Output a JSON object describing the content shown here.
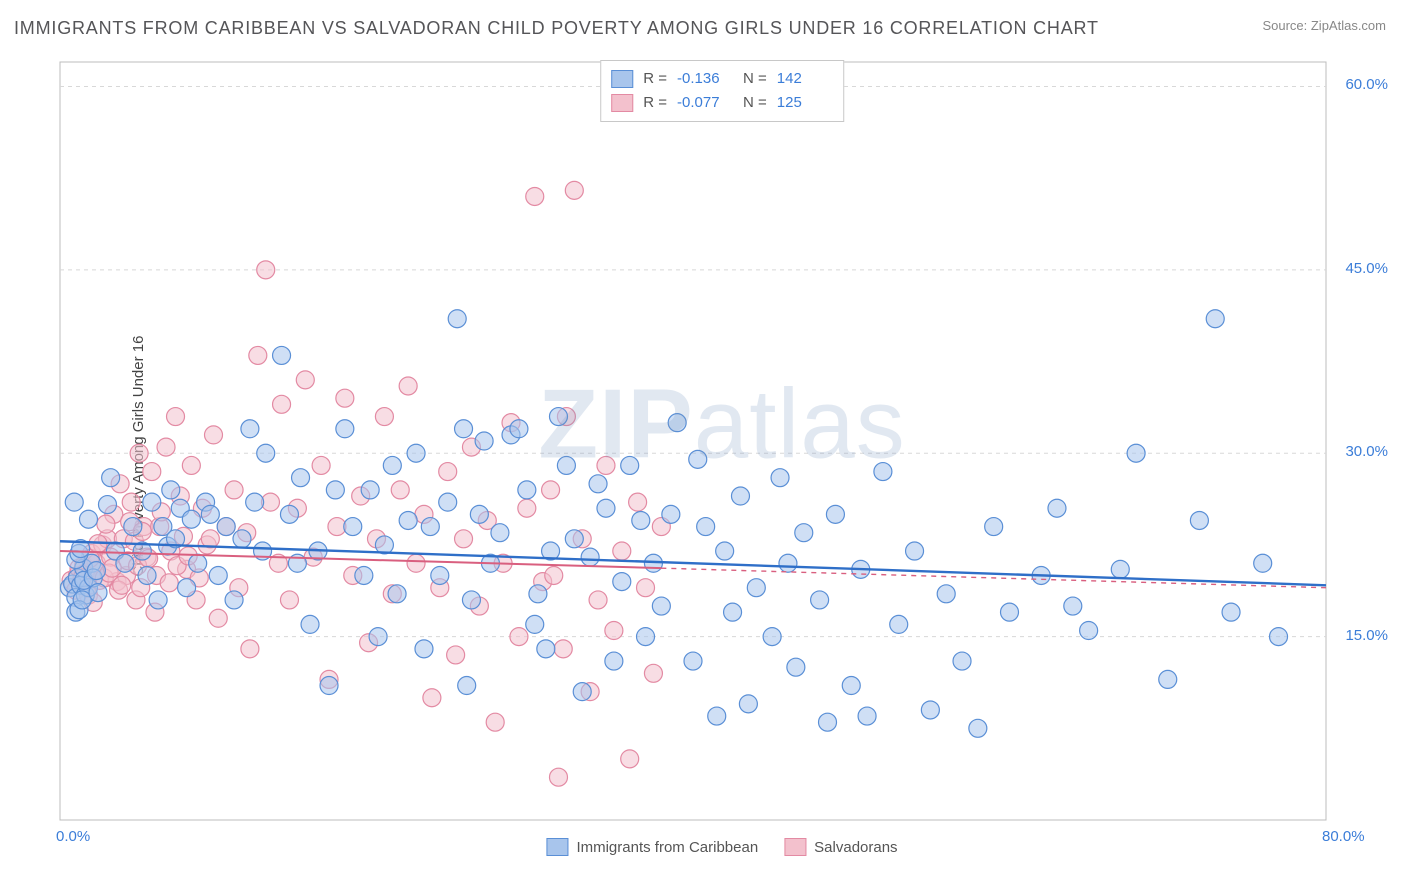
{
  "title": "IMMIGRANTS FROM CARIBBEAN VS SALVADORAN CHILD POVERTY AMONG GIRLS UNDER 16 CORRELATION CHART",
  "source_label": "Source: ",
  "source_name": "ZipAtlas.com",
  "ylabel": "Child Poverty Among Girls Under 16",
  "watermark_a": "ZIP",
  "watermark_b": "atlas",
  "chart": {
    "type": "scatter",
    "background_color": "#ffffff",
    "grid_color": "#d8d8d8",
    "axis_label_color": "#3b7dd8",
    "xlim": [
      0,
      80
    ],
    "ylim": [
      0,
      62
    ],
    "xticks": [
      {
        "v": 0,
        "label": "0.0%"
      },
      {
        "v": 80,
        "label": "80.0%"
      }
    ],
    "yticks": [
      {
        "v": 15,
        "label": "15.0%"
      },
      {
        "v": 30,
        "label": "30.0%"
      },
      {
        "v": 45,
        "label": "45.0%"
      },
      {
        "v": 60,
        "label": "60.0%"
      }
    ],
    "marker_radius": 9,
    "marker_opacity": 0.55,
    "series": [
      {
        "key": "caribbean",
        "name": "Immigrants from Caribbean",
        "fill": "#a8c5ec",
        "stroke": "#5a8fd6",
        "line_color": "#2f6fc8",
        "line_width": 2.4,
        "dash_extend": false,
        "R": "-0.136",
        "N": "142",
        "regression": {
          "x1": 0,
          "y1": 22.8,
          "x2": 80,
          "y2": 19.2
        },
        "points": [
          [
            0.6,
            19.0
          ],
          [
            0.8,
            19.3
          ],
          [
            1.0,
            18.2
          ],
          [
            1.1,
            19.8
          ],
          [
            1.3,
            19.2
          ],
          [
            1.5,
            20.6
          ],
          [
            1.6,
            18.4
          ],
          [
            1.8,
            19.0
          ],
          [
            1.0,
            17.0
          ],
          [
            1.2,
            17.2
          ],
          [
            1.4,
            18.0
          ],
          [
            1.5,
            19.6
          ],
          [
            2.0,
            21.0
          ],
          [
            2.1,
            19.8
          ],
          [
            2.3,
            20.4
          ],
          [
            2.4,
            18.6
          ],
          [
            0.9,
            26.0
          ],
          [
            1.0,
            21.3
          ],
          [
            1.2,
            21.8
          ],
          [
            1.3,
            22.2
          ],
          [
            1.8,
            24.6
          ],
          [
            3.0,
            25.8
          ],
          [
            3.5,
            22.0
          ],
          [
            3.2,
            28.0
          ],
          [
            4.1,
            21.0
          ],
          [
            4.6,
            24.0
          ],
          [
            5.2,
            22.0
          ],
          [
            5.5,
            20.0
          ],
          [
            5.8,
            26.0
          ],
          [
            6.2,
            18.0
          ],
          [
            6.5,
            24.0
          ],
          [
            6.8,
            22.4
          ],
          [
            7.0,
            27.0
          ],
          [
            7.3,
            23.0
          ],
          [
            7.6,
            25.5
          ],
          [
            8.0,
            19.0
          ],
          [
            8.3,
            24.6
          ],
          [
            8.7,
            21.0
          ],
          [
            9.2,
            26.0
          ],
          [
            9.5,
            25.0
          ],
          [
            10.0,
            20.0
          ],
          [
            10.5,
            24.0
          ],
          [
            11.0,
            18.0
          ],
          [
            11.5,
            23.0
          ],
          [
            12.0,
            32.0
          ],
          [
            12.3,
            26.0
          ],
          [
            12.8,
            22.0
          ],
          [
            13.0,
            30.0
          ],
          [
            14.0,
            38.0
          ],
          [
            14.5,
            25.0
          ],
          [
            15.0,
            21.0
          ],
          [
            15.2,
            28.0
          ],
          [
            15.8,
            16.0
          ],
          [
            16.3,
            22.0
          ],
          [
            17.0,
            11.0
          ],
          [
            17.4,
            27.0
          ],
          [
            18.0,
            32.0
          ],
          [
            18.5,
            24.0
          ],
          [
            19.2,
            20.0
          ],
          [
            19.6,
            27.0
          ],
          [
            20.1,
            15.0
          ],
          [
            20.5,
            22.5
          ],
          [
            21.0,
            29.0
          ],
          [
            21.3,
            18.5
          ],
          [
            22.0,
            24.5
          ],
          [
            22.5,
            30.0
          ],
          [
            23.0,
            14.0
          ],
          [
            23.4,
            24.0
          ],
          [
            24.0,
            20.0
          ],
          [
            24.5,
            26.0
          ],
          [
            25.1,
            41.0
          ],
          [
            25.5,
            32.0
          ],
          [
            25.7,
            11.0
          ],
          [
            26.0,
            18.0
          ],
          [
            26.5,
            25.0
          ],
          [
            26.8,
            31.0
          ],
          [
            27.2,
            21.0
          ],
          [
            27.8,
            23.5
          ],
          [
            28.5,
            31.5
          ],
          [
            29.0,
            32.0
          ],
          [
            29.5,
            27.0
          ],
          [
            30.0,
            16.0
          ],
          [
            30.2,
            18.5
          ],
          [
            30.7,
            14.0
          ],
          [
            31.0,
            22.0
          ],
          [
            31.5,
            33.0
          ],
          [
            32.0,
            29.0
          ],
          [
            32.5,
            23.0
          ],
          [
            33.0,
            10.5
          ],
          [
            33.5,
            21.5
          ],
          [
            34.0,
            27.5
          ],
          [
            34.5,
            25.5
          ],
          [
            35.0,
            13.0
          ],
          [
            35.5,
            19.5
          ],
          [
            36.0,
            29.0
          ],
          [
            36.7,
            24.5
          ],
          [
            37.0,
            15.0
          ],
          [
            37.5,
            21.0
          ],
          [
            38.0,
            17.5
          ],
          [
            38.6,
            25.0
          ],
          [
            39.0,
            32.5
          ],
          [
            40.0,
            13.0
          ],
          [
            40.3,
            29.5
          ],
          [
            40.8,
            24.0
          ],
          [
            41.5,
            8.5
          ],
          [
            42.0,
            22.0
          ],
          [
            42.5,
            17.0
          ],
          [
            43.0,
            26.5
          ],
          [
            43.5,
            9.5
          ],
          [
            44.0,
            19.0
          ],
          [
            45.0,
            15.0
          ],
          [
            45.5,
            28.0
          ],
          [
            46.0,
            21.0
          ],
          [
            46.5,
            12.5
          ],
          [
            47.0,
            23.5
          ],
          [
            48.0,
            18.0
          ],
          [
            48.5,
            8.0
          ],
          [
            49.0,
            25.0
          ],
          [
            50.0,
            11.0
          ],
          [
            50.6,
            20.5
          ],
          [
            51.0,
            8.5
          ],
          [
            52.0,
            28.5
          ],
          [
            53.0,
            16.0
          ],
          [
            54.0,
            22.0
          ],
          [
            55.0,
            9.0
          ],
          [
            56.0,
            18.5
          ],
          [
            57.0,
            13.0
          ],
          [
            58.0,
            7.5
          ],
          [
            59.0,
            24.0
          ],
          [
            60.0,
            17.0
          ],
          [
            62.0,
            20.0
          ],
          [
            63.0,
            25.5
          ],
          [
            64.0,
            17.5
          ],
          [
            65.0,
            15.5
          ],
          [
            67.0,
            20.5
          ],
          [
            68.0,
            30.0
          ],
          [
            70.0,
            11.5
          ],
          [
            72.0,
            24.5
          ],
          [
            73.0,
            41.0
          ],
          [
            74.0,
            17.0
          ],
          [
            76.0,
            21.0
          ],
          [
            77.0,
            15.0
          ]
        ]
      },
      {
        "key": "salvadorans",
        "name": "Salvadorans",
        "fill": "#f3c1cd",
        "stroke": "#e38aa3",
        "line_color": "#d95f7f",
        "line_width": 2.0,
        "dash_extend": true,
        "R": "-0.077",
        "N": "125",
        "regression": {
          "x1": 0,
          "y1": 22.0,
          "x2": 38,
          "y2": 20.6
        },
        "regression_ext": {
          "x1": 38,
          "y1": 20.6,
          "x2": 80,
          "y2": 19.0
        },
        "points": [
          [
            0.7,
            19.6
          ],
          [
            1.0,
            18.8
          ],
          [
            1.1,
            20.0
          ],
          [
            1.2,
            20.6
          ],
          [
            1.3,
            19.4
          ],
          [
            1.5,
            20.8
          ],
          [
            1.7,
            19.0
          ],
          [
            1.8,
            18.4
          ],
          [
            2.0,
            21.8
          ],
          [
            2.1,
            17.8
          ],
          [
            2.3,
            21.0
          ],
          [
            2.5,
            19.6
          ],
          [
            2.7,
            22.5
          ],
          [
            3.0,
            23.0
          ],
          [
            3.2,
            21.5
          ],
          [
            3.4,
            25.0
          ],
          [
            3.6,
            19.5
          ],
          [
            3.8,
            27.5
          ],
          [
            4.0,
            23.0
          ],
          [
            4.2,
            20.0
          ],
          [
            4.5,
            26.0
          ],
          [
            4.8,
            18.0
          ],
          [
            5.0,
            30.0
          ],
          [
            5.3,
            24.0
          ],
          [
            5.5,
            21.5
          ],
          [
            5.8,
            28.5
          ],
          [
            6.0,
            17.0
          ],
          [
            6.3,
            24.0
          ],
          [
            6.7,
            30.5
          ],
          [
            7.0,
            22.0
          ],
          [
            7.3,
            33.0
          ],
          [
            7.6,
            26.5
          ],
          [
            8.0,
            20.5
          ],
          [
            8.3,
            29.0
          ],
          [
            8.6,
            18.0
          ],
          [
            9.0,
            25.5
          ],
          [
            9.3,
            22.5
          ],
          [
            9.7,
            31.5
          ],
          [
            10.0,
            16.5
          ],
          [
            10.5,
            24.0
          ],
          [
            11.0,
            27.0
          ],
          [
            11.3,
            19.0
          ],
          [
            11.8,
            23.5
          ],
          [
            12.0,
            14.0
          ],
          [
            12.5,
            38.0
          ],
          [
            13.0,
            45.0
          ],
          [
            13.3,
            26.0
          ],
          [
            13.8,
            21.0
          ],
          [
            14.0,
            34.0
          ],
          [
            14.5,
            18.0
          ],
          [
            15.0,
            25.5
          ],
          [
            15.5,
            36.0
          ],
          [
            16.0,
            21.5
          ],
          [
            16.5,
            29.0
          ],
          [
            17.0,
            11.5
          ],
          [
            17.5,
            24.0
          ],
          [
            18.0,
            34.5
          ],
          [
            18.5,
            20.0
          ],
          [
            19.0,
            26.5
          ],
          [
            19.5,
            14.5
          ],
          [
            20.0,
            23.0
          ],
          [
            20.5,
            33.0
          ],
          [
            21.0,
            18.5
          ],
          [
            21.5,
            27.0
          ],
          [
            22.0,
            35.5
          ],
          [
            22.5,
            21.0
          ],
          [
            23.0,
            25.0
          ],
          [
            23.5,
            10.0
          ],
          [
            24.0,
            19.0
          ],
          [
            24.5,
            28.5
          ],
          [
            25.0,
            13.5
          ],
          [
            25.5,
            23.0
          ],
          [
            26.0,
            30.5
          ],
          [
            26.5,
            17.5
          ],
          [
            27.0,
            24.5
          ],
          [
            27.5,
            8.0
          ],
          [
            28.0,
            21.0
          ],
          [
            28.5,
            32.5
          ],
          [
            29.0,
            15.0
          ],
          [
            29.5,
            25.5
          ],
          [
            30.0,
            51.0
          ],
          [
            30.5,
            19.5
          ],
          [
            31.0,
            27.0
          ],
          [
            31.2,
            20.0
          ],
          [
            31.5,
            3.5
          ],
          [
            31.8,
            14.0
          ],
          [
            32.0,
            33.0
          ],
          [
            32.5,
            51.5
          ],
          [
            33.0,
            23.0
          ],
          [
            33.5,
            10.5
          ],
          [
            34.0,
            18.0
          ],
          [
            34.5,
            29.0
          ],
          [
            35.0,
            15.5
          ],
          [
            35.5,
            22.0
          ],
          [
            36.0,
            5.0
          ],
          [
            36.5,
            26.0
          ],
          [
            37.0,
            19.0
          ],
          [
            37.5,
            12.0
          ],
          [
            38.0,
            24.0
          ],
          [
            1.6,
            20.2
          ],
          [
            2.2,
            20.4
          ],
          [
            2.8,
            19.8
          ],
          [
            3.1,
            20.2
          ],
          [
            3.7,
            18.8
          ],
          [
            4.3,
            21.2
          ],
          [
            4.9,
            20.8
          ],
          [
            5.1,
            19.0
          ],
          [
            5.6,
            21.4
          ],
          [
            6.1,
            20.0
          ],
          [
            1.4,
            19.8
          ],
          [
            1.9,
            21.4
          ],
          [
            2.4,
            22.6
          ],
          [
            2.9,
            24.2
          ],
          [
            3.3,
            20.6
          ],
          [
            3.9,
            19.2
          ],
          [
            4.4,
            24.4
          ],
          [
            4.7,
            22.8
          ],
          [
            5.2,
            23.6
          ],
          [
            6.4,
            25.2
          ],
          [
            6.9,
            19.4
          ],
          [
            7.4,
            20.8
          ],
          [
            7.8,
            23.2
          ],
          [
            8.1,
            21.6
          ],
          [
            8.8,
            19.8
          ],
          [
            9.5,
            23.0
          ]
        ]
      }
    ],
    "corr_legend_labels": {
      "R": "R =",
      "N": "N ="
    },
    "series_legend_order": [
      "caribbean",
      "salvadorans"
    ]
  }
}
